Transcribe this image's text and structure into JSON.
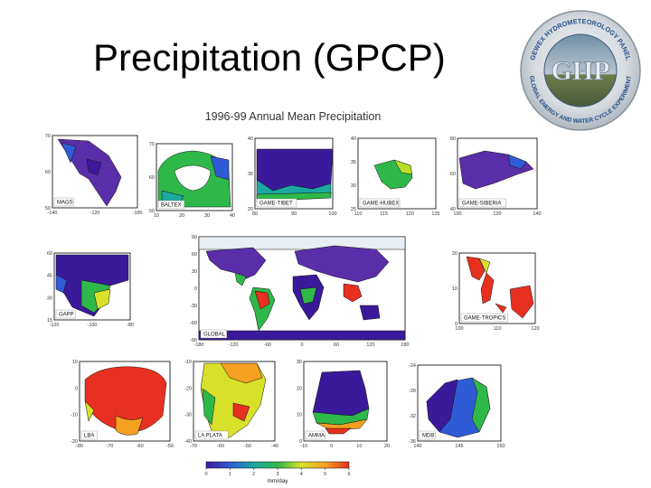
{
  "slide": {
    "title": "Precipitation (GPCP)"
  },
  "logo": {
    "name": "GHP",
    "ring_text": "GEWEX HYDROMETEOROLOGY PANEL · GLOBAL ENERGY AND WATER CYCLE EXPERIMENT"
  },
  "figure": {
    "title": "1996-99 Annual Mean Precipitation",
    "colorbar": {
      "ticks": [
        "0",
        "1",
        "2",
        "3",
        "4",
        "5",
        "6"
      ],
      "unit": "mm/day",
      "colors": [
        "#3a1a9a",
        "#2f5bd6",
        "#1aa8a0",
        "#2fb84a",
        "#d8e02a",
        "#f5a020",
        "#e83020"
      ]
    },
    "panels": [
      {
        "id": "mags",
        "label": "MAGS",
        "yticks": [
          "70",
          "60",
          "50"
        ],
        "xticks": [
          "-140",
          "-120",
          "-100"
        ]
      },
      {
        "id": "baltex",
        "label": "BALTEX",
        "yticks": [
          "70",
          "60",
          "50"
        ],
        "xticks": [
          "10",
          "20",
          "30",
          "40"
        ]
      },
      {
        "id": "game-tibet",
        "label": "GAME-TIBET",
        "yticks": [
          "40",
          "30",
          "20"
        ],
        "xticks": [
          "80",
          "90",
          "100"
        ]
      },
      {
        "id": "game-hubex",
        "label": "GAME-HUBEX",
        "yticks": [
          "40",
          "35",
          "30",
          "25"
        ],
        "xticks": [
          "110",
          "115",
          "120",
          "125"
        ]
      },
      {
        "id": "game-siberia",
        "label": "GAME-SIBERIA",
        "yticks": [
          "80",
          "60",
          "40"
        ],
        "xticks": [
          "100",
          "120",
          "140"
        ]
      },
      {
        "id": "gapp",
        "label": "GAPP",
        "yticks": [
          "60",
          "45",
          "30",
          "15"
        ],
        "xticks": [
          "-120",
          "-100",
          "-80"
        ]
      },
      {
        "id": "global",
        "label": "GLOBAL",
        "yticks": [
          "90",
          "60",
          "30",
          "0",
          "-30",
          "-60",
          "-90"
        ],
        "xticks": [
          "-180",
          "-120",
          "-60",
          "0",
          "60",
          "120",
          "180"
        ]
      },
      {
        "id": "game-tropics",
        "label": "GAME-TROPICS",
        "yticks": [
          "20",
          "10",
          "0"
        ],
        "xticks": [
          "100",
          "110",
          "120"
        ]
      },
      {
        "id": "lba",
        "label": "LBA",
        "yticks": [
          "10",
          "0",
          "-10",
          "-20"
        ],
        "xticks": [
          "-80",
          "-70",
          "-60",
          "-50"
        ]
      },
      {
        "id": "la-plata",
        "label": "LA PLATA",
        "yticks": [
          "-10",
          "-20",
          "-30",
          "-40"
        ],
        "xticks": [
          "-70",
          "-60",
          "-50",
          "-40"
        ]
      },
      {
        "id": "amma",
        "label": "AMMA",
        "yticks": [
          "30",
          "20",
          "10",
          "0"
        ],
        "xticks": [
          "-10",
          "0",
          "10",
          "20"
        ]
      },
      {
        "id": "mdb",
        "label": "MDB",
        "yticks": [
          "-24",
          "-28",
          "-32",
          "-36"
        ],
        "xticks": [
          "140",
          "145",
          "150"
        ]
      }
    ]
  }
}
